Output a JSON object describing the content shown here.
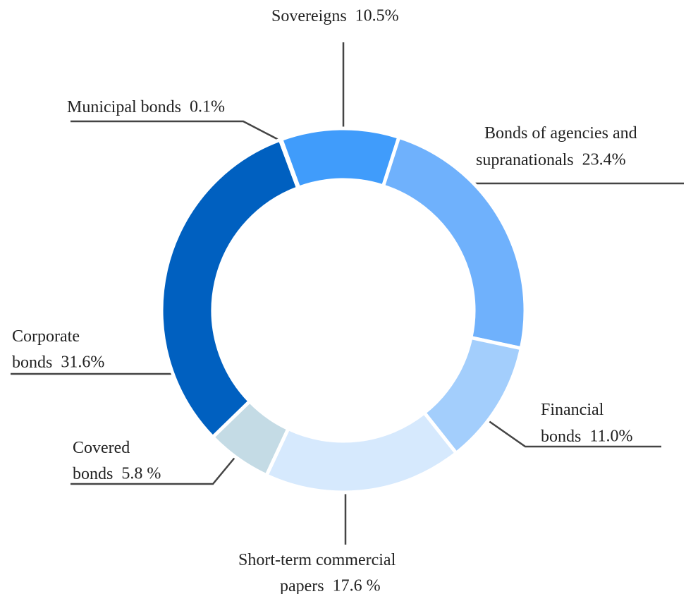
{
  "chart_data": {
    "type": "pie",
    "categories": [
      "Sovereigns",
      "Bonds of agencies and supranationals",
      "Financial bonds",
      "Short-term commercial papers",
      "Covered bonds",
      "Corporate bonds",
      "Municipal bonds"
    ],
    "values": [
      10.5,
      23.4,
      11.0,
      17.6,
      5.8,
      31.6,
      0.1
    ],
    "value_labels": [
      "10.5%",
      "23.4%",
      "11.0%",
      "17.6 %",
      "5.8 %",
      "31.6%",
      "0.1%"
    ],
    "colors": [
      "#409cfb",
      "#6fb1fc",
      "#a3cefc",
      "#d6e9fd",
      "#c4dbe5",
      "#0060c0",
      "#1a78e8"
    ],
    "donut": true
  }
}
